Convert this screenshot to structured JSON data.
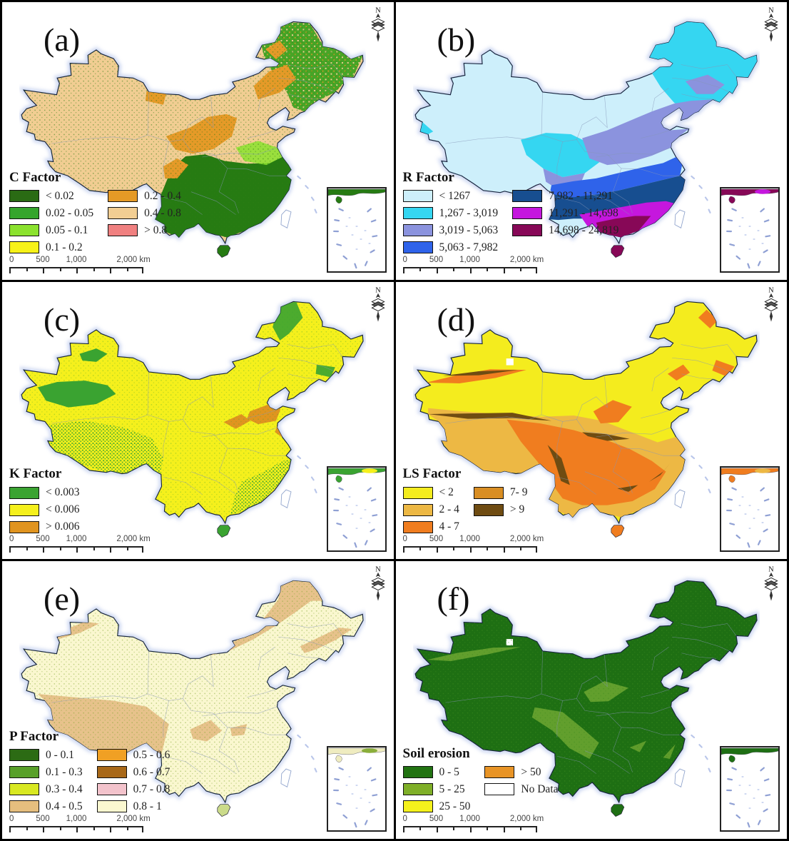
{
  "north_label": "N",
  "scale_bar": {
    "labels": [
      "0",
      "500",
      "1,000"
    ],
    "end_label": "2,000 km"
  },
  "panels": [
    {
      "id": "a",
      "label": "(a)",
      "legend_title": "C Factor",
      "legend_columns": [
        4,
        3
      ],
      "legend_items": [
        {
          "label": "< 0.02",
          "color": "#2A6B14"
        },
        {
          "label": "0.02 - 0.05",
          "color": "#35A52C"
        },
        {
          "label": "0.05 - 0.1",
          "color": "#8BE22E"
        },
        {
          "label": "0.1 - 0.2",
          "color": "#F7F218"
        },
        {
          "label": "0.2 - 0.4",
          "color": "#E59A26"
        },
        {
          "label": "0.4 - 0.8",
          "color": "#F2CE93"
        },
        {
          "label": "> 0.8",
          "color": "#F08080"
        }
      ]
    },
    {
      "id": "b",
      "label": "(b)",
      "legend_title": "R Factor",
      "legend_columns": [
        4,
        3
      ],
      "legend_items": [
        {
          "label": "< 1267",
          "color": "#CDEFFB"
        },
        {
          "label": "1,267 - 3,019",
          "color": "#35D6F1"
        },
        {
          "label": "3,019 - 5,063",
          "color": "#8B93DE"
        },
        {
          "label": "5,063 - 7,982",
          "color": "#2F63EA"
        },
        {
          "label": "7,982 - 11,291",
          "color": "#174E90"
        },
        {
          "label": "11,291 - 14,698",
          "color": "#C517DE"
        },
        {
          "label": "14,698 - 24,819",
          "color": "#870857"
        }
      ]
    },
    {
      "id": "c",
      "label": "(c)",
      "legend_title": "K Factor",
      "legend_columns": [
        3
      ],
      "legend_items": [
        {
          "label": "< 0.003",
          "color": "#3AA331"
        },
        {
          "label": "< 0.006",
          "color": "#F5F01C"
        },
        {
          "label": "> 0.006",
          "color": "#E0941F"
        }
      ]
    },
    {
      "id": "d",
      "label": "(d)",
      "legend_title": "LS Factor",
      "legend_columns": [
        3,
        2
      ],
      "legend_items": [
        {
          "label": "< 2",
          "color": "#F4EC1E"
        },
        {
          "label": "2 - 4",
          "color": "#EDB844"
        },
        {
          "label": "4 - 7",
          "color": "#F07D1F"
        },
        {
          "label": "7- 9",
          "color": "#D98E23"
        },
        {
          "label": "> 9",
          "color": "#6F4C12"
        }
      ]
    },
    {
      "id": "e",
      "label": "(e)",
      "legend_title": "P Factor",
      "legend_columns": [
        4,
        4
      ],
      "legend_items": [
        {
          "label": "0 - 0.1",
          "color": "#2C6B14"
        },
        {
          "label": "0.1 - 0.3",
          "color": "#58A029"
        },
        {
          "label": "0.3 - 0.4",
          "color": "#D8E821"
        },
        {
          "label": "0.4 - 0.5",
          "color": "#E5BE7E"
        },
        {
          "label": "0.5 - 0.6",
          "color": "#F0A024"
        },
        {
          "label": "0.6 - 0.7",
          "color": "#A86818"
        },
        {
          "label": "0.7 - 0.8",
          "color": "#F3C3CC"
        },
        {
          "label": "0.8 - 1",
          "color": "#FBF8D0"
        }
      ]
    },
    {
      "id": "f",
      "label": "(f)",
      "legend_title": "Soil erosion",
      "legend_columns": [
        3,
        2
      ],
      "legend_items": [
        {
          "label": "0 - 5",
          "color": "#227312"
        },
        {
          "label": "5 - 25",
          "color": "#7FAF28"
        },
        {
          "label": "25 - 50",
          "color": "#F5F21C"
        },
        {
          "label": "> 50",
          "color": "#E89426"
        },
        {
          "label": "No Data",
          "color": "#FFFFFF"
        }
      ]
    }
  ]
}
